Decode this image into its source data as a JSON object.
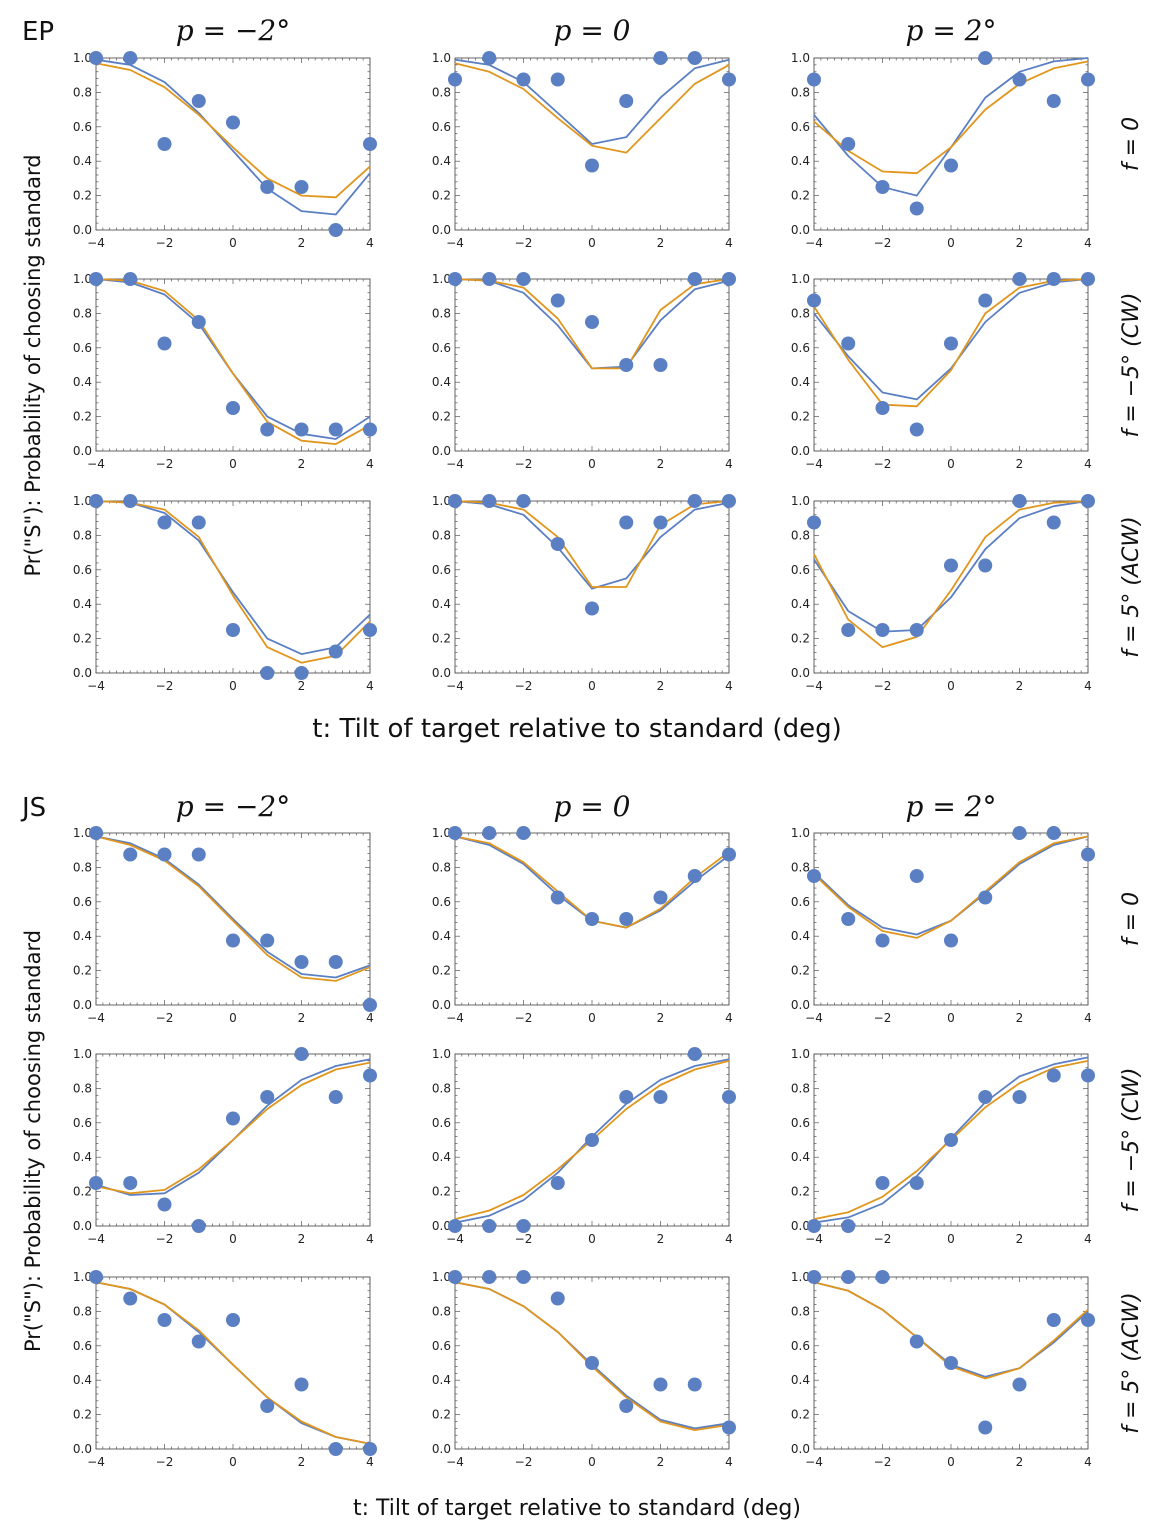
{
  "figure": {
    "xlabel": "t: Tilt of target relative to standard (deg)",
    "ylabel": "Pr(\"S\"): Probability of choosing standard",
    "column_titles": [
      "p = −2°",
      "p = 0",
      "p = 2°"
    ],
    "row_labels": [
      "f = 0",
      "f = −5° (CW)",
      "f = 5° (ACW)"
    ],
    "xticks": [
      -4,
      -2,
      0,
      2,
      4
    ],
    "yticks": [
      0.0,
      0.2,
      0.4,
      0.6,
      0.8,
      1.0
    ],
    "colors": {
      "data": "#5b7fc3",
      "model1": "#5b7fc3",
      "model2": "#e0961d",
      "frame": "#666666"
    }
  },
  "chart_data": [
    {
      "type": "scatter",
      "observer": "EP",
      "x": [
        -4,
        -3,
        -2,
        -1,
        0,
        1,
        2,
        3,
        4
      ],
      "xlim": [
        -4,
        4
      ],
      "ylim": [
        0,
        1
      ],
      "panels": [
        {
          "row": 0,
          "col": 0,
          "points": [
            1.0,
            1.0,
            0.5,
            0.75,
            0.625,
            0.25,
            0.25,
            0.0,
            0.5
          ],
          "fit_blue": [
            0.99,
            0.96,
            0.86,
            0.68,
            0.46,
            0.24,
            0.11,
            0.09,
            0.33
          ],
          "fit_orange": [
            0.97,
            0.93,
            0.83,
            0.67,
            0.48,
            0.3,
            0.2,
            0.19,
            0.37
          ]
        },
        {
          "row": 0,
          "col": 1,
          "points": [
            0.875,
            1.0,
            0.875,
            0.875,
            0.375,
            0.75,
            1.0,
            1.0,
            0.875
          ],
          "fit_blue": [
            0.99,
            0.96,
            0.86,
            0.68,
            0.5,
            0.54,
            0.77,
            0.94,
            0.99
          ],
          "fit_orange": [
            0.97,
            0.92,
            0.82,
            0.65,
            0.49,
            0.45,
            0.65,
            0.85,
            0.96
          ]
        },
        {
          "row": 0,
          "col": 2,
          "points": [
            0.875,
            0.5,
            0.25,
            0.125,
            0.375,
            1.0,
            0.875,
            0.75,
            0.875
          ],
          "fit_blue": [
            0.67,
            0.43,
            0.25,
            0.2,
            0.48,
            0.77,
            0.92,
            0.98,
            1.0
          ],
          "fit_orange": [
            0.63,
            0.46,
            0.34,
            0.33,
            0.48,
            0.7,
            0.85,
            0.94,
            0.98
          ]
        }
      ]
    },
    {
      "type": "scatter",
      "observer": "EP",
      "x": [
        -4,
        -3,
        -2,
        -1,
        0,
        1,
        2,
        3,
        4
      ],
      "xlim": [
        -4,
        4
      ],
      "ylim": [
        0,
        1
      ],
      "panels": [
        {
          "row": 1,
          "col": 0,
          "points": [
            1.0,
            1.0,
            0.625,
            0.75,
            0.25,
            0.125,
            0.125,
            0.125,
            0.125
          ],
          "fit_blue": [
            1.0,
            0.98,
            0.91,
            0.74,
            0.45,
            0.2,
            0.1,
            0.07,
            0.2
          ],
          "fit_orange": [
            1.0,
            0.99,
            0.93,
            0.76,
            0.45,
            0.17,
            0.06,
            0.04,
            0.15
          ]
        },
        {
          "row": 1,
          "col": 1,
          "points": [
            1.0,
            1.0,
            1.0,
            0.875,
            0.75,
            0.5,
            0.5,
            1.0,
            1.0
          ],
          "fit_blue": [
            1.0,
            0.99,
            0.92,
            0.73,
            0.48,
            0.49,
            0.76,
            0.94,
            0.99
          ],
          "fit_orange": [
            1.0,
            0.99,
            0.95,
            0.77,
            0.48,
            0.48,
            0.82,
            0.97,
            1.0
          ]
        },
        {
          "row": 1,
          "col": 2,
          "points": [
            0.875,
            0.625,
            0.25,
            0.125,
            0.625,
            0.875,
            1.0,
            1.0,
            1.0
          ],
          "fit_blue": [
            0.8,
            0.55,
            0.34,
            0.3,
            0.48,
            0.75,
            0.92,
            0.98,
            1.0
          ],
          "fit_orange": [
            0.84,
            0.53,
            0.27,
            0.26,
            0.47,
            0.8,
            0.95,
            0.99,
            1.0
          ]
        }
      ]
    },
    {
      "type": "scatter",
      "observer": "EP",
      "x": [
        -4,
        -3,
        -2,
        -1,
        0,
        1,
        2,
        3,
        4
      ],
      "xlim": [
        -4,
        4
      ],
      "ylim": [
        0,
        1
      ],
      "panels": [
        {
          "row": 2,
          "col": 0,
          "points": [
            1.0,
            1.0,
            0.875,
            0.875,
            0.25,
            0.0,
            0.0,
            0.125,
            0.25
          ],
          "fit_blue": [
            1.0,
            0.99,
            0.93,
            0.77,
            0.47,
            0.2,
            0.11,
            0.15,
            0.34
          ],
          "fit_orange": [
            1.0,
            0.99,
            0.95,
            0.79,
            0.45,
            0.15,
            0.06,
            0.1,
            0.3
          ]
        },
        {
          "row": 2,
          "col": 1,
          "points": [
            1.0,
            1.0,
            1.0,
            0.75,
            0.375,
            0.875,
            0.875,
            1.0,
            1.0
          ],
          "fit_blue": [
            1.0,
            0.98,
            0.92,
            0.73,
            0.49,
            0.55,
            0.79,
            0.95,
            0.99
          ],
          "fit_orange": [
            1.0,
            0.99,
            0.95,
            0.79,
            0.5,
            0.5,
            0.86,
            0.98,
            1.0
          ]
        },
        {
          "row": 2,
          "col": 2,
          "points": [
            0.875,
            0.25,
            0.25,
            0.25,
            0.625,
            0.625,
            1.0,
            0.875,
            1.0
          ],
          "fit_blue": [
            0.66,
            0.36,
            0.24,
            0.25,
            0.44,
            0.72,
            0.9,
            0.97,
            1.0
          ],
          "fit_orange": [
            0.69,
            0.31,
            0.15,
            0.21,
            0.48,
            0.79,
            0.95,
            0.99,
            1.0
          ]
        }
      ]
    },
    {
      "type": "scatter",
      "observer": "JS",
      "x": [
        -4,
        -3,
        -2,
        -1,
        0,
        1,
        2,
        3,
        4
      ],
      "xlim": [
        -4,
        4
      ],
      "ylim": [
        0,
        1
      ],
      "panels": [
        {
          "row": 0,
          "col": 0,
          "points": [
            1.0,
            0.875,
            0.875,
            0.875,
            0.375,
            0.375,
            0.25,
            0.25,
            0.0
          ],
          "fit_blue": [
            0.98,
            0.94,
            0.85,
            0.7,
            0.5,
            0.31,
            0.18,
            0.16,
            0.23
          ],
          "fit_orange": [
            0.98,
            0.93,
            0.84,
            0.69,
            0.49,
            0.29,
            0.16,
            0.14,
            0.22
          ]
        },
        {
          "row": 0,
          "col": 1,
          "points": [
            1.0,
            1.0,
            1.0,
            0.625,
            0.5,
            0.5,
            0.625,
            0.75,
            0.875
          ],
          "fit_blue": [
            0.98,
            0.93,
            0.82,
            0.64,
            0.49,
            0.45,
            0.55,
            0.72,
            0.87
          ],
          "fit_orange": [
            0.98,
            0.94,
            0.83,
            0.66,
            0.49,
            0.45,
            0.56,
            0.74,
            0.89
          ]
        },
        {
          "row": 0,
          "col": 2,
          "points": [
            0.75,
            0.5,
            0.375,
            0.75,
            0.375,
            0.625,
            1.0,
            1.0,
            0.875
          ],
          "fit_blue": [
            0.77,
            0.58,
            0.45,
            0.41,
            0.49,
            0.65,
            0.82,
            0.93,
            0.98
          ],
          "fit_orange": [
            0.76,
            0.57,
            0.43,
            0.39,
            0.49,
            0.66,
            0.83,
            0.94,
            0.98
          ]
        }
      ]
    },
    {
      "type": "scatter",
      "observer": "JS",
      "x": [
        -4,
        -3,
        -2,
        -1,
        0,
        1,
        2,
        3,
        4
      ],
      "xlim": [
        -4,
        4
      ],
      "ylim": [
        0,
        1
      ],
      "panels": [
        {
          "row": 1,
          "col": 0,
          "points": [
            0.25,
            0.25,
            0.125,
            0.0,
            0.625,
            0.75,
            1.0,
            0.75,
            0.875
          ],
          "fit_blue": [
            0.24,
            0.18,
            0.19,
            0.31,
            0.5,
            0.7,
            0.85,
            0.93,
            0.97
          ],
          "fit_orange": [
            0.23,
            0.19,
            0.21,
            0.33,
            0.5,
            0.68,
            0.82,
            0.91,
            0.95
          ]
        },
        {
          "row": 1,
          "col": 1,
          "points": [
            0.0,
            0.0,
            0.0,
            0.25,
            0.5,
            0.75,
            0.75,
            1.0,
            0.75
          ],
          "fit_blue": [
            0.02,
            0.06,
            0.15,
            0.31,
            0.52,
            0.71,
            0.85,
            0.93,
            0.97
          ],
          "fit_orange": [
            0.04,
            0.09,
            0.18,
            0.33,
            0.5,
            0.68,
            0.82,
            0.91,
            0.96
          ]
        },
        {
          "row": 1,
          "col": 2,
          "points": [
            0.0,
            0.0,
            0.25,
            0.25,
            0.5,
            0.75,
            0.75,
            0.875,
            0.875
          ],
          "fit_blue": [
            0.02,
            0.05,
            0.13,
            0.29,
            0.51,
            0.72,
            0.87,
            0.94,
            0.98
          ],
          "fit_orange": [
            0.04,
            0.08,
            0.17,
            0.32,
            0.5,
            0.69,
            0.83,
            0.92,
            0.96
          ]
        }
      ]
    },
    {
      "type": "scatter",
      "observer": "JS",
      "x": [
        -4,
        -3,
        -2,
        -1,
        0,
        1,
        2,
        3,
        4
      ],
      "xlim": [
        -4,
        4
      ],
      "ylim": [
        0,
        1
      ],
      "panels": [
        {
          "row": 2,
          "col": 0,
          "points": [
            1.0,
            0.875,
            0.75,
            0.625,
            0.75,
            0.25,
            0.375,
            0.0,
            0.0
          ],
          "fit_blue": [
            0.97,
            0.93,
            0.84,
            0.68,
            0.49,
            0.3,
            0.15,
            0.07,
            0.03
          ],
          "fit_orange": [
            0.97,
            0.93,
            0.84,
            0.69,
            0.49,
            0.3,
            0.16,
            0.07,
            0.03
          ]
        },
        {
          "row": 2,
          "col": 1,
          "points": [
            1.0,
            1.0,
            1.0,
            0.875,
            0.5,
            0.25,
            0.375,
            0.375,
            0.125
          ],
          "fit_blue": [
            0.97,
            0.93,
            0.83,
            0.68,
            0.49,
            0.31,
            0.17,
            0.12,
            0.15
          ],
          "fit_orange": [
            0.97,
            0.93,
            0.83,
            0.68,
            0.48,
            0.3,
            0.16,
            0.11,
            0.14
          ]
        },
        {
          "row": 2,
          "col": 2,
          "points": [
            1.0,
            1.0,
            1.0,
            0.625,
            0.5,
            0.125,
            0.375,
            0.75,
            0.75
          ],
          "fit_blue": [
            0.97,
            0.92,
            0.81,
            0.65,
            0.49,
            0.42,
            0.47,
            0.62,
            0.8
          ],
          "fit_orange": [
            0.97,
            0.92,
            0.81,
            0.65,
            0.48,
            0.41,
            0.47,
            0.63,
            0.81
          ]
        }
      ]
    }
  ]
}
